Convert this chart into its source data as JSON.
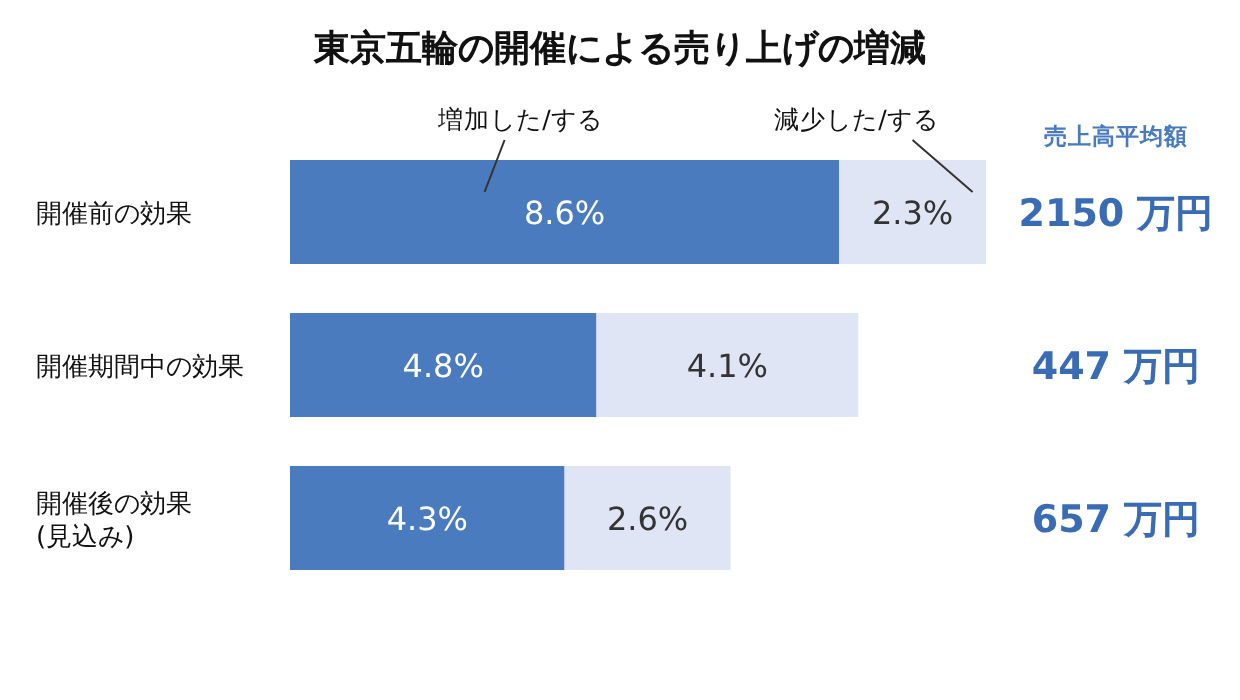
{
  "chart_data": {
    "type": "bar",
    "orientation": "horizontal",
    "stacked": true,
    "title": "東京五輪の開催による売り上げの増減",
    "categories": [
      "開催前の効果",
      "開催期間中の効果",
      "開催後の効果\n(見込み)"
    ],
    "series": [
      {
        "name": "増加した/する",
        "color": "#4a7bbf",
        "values": [
          8.6,
          4.8,
          4.3
        ],
        "value_labels": [
          "8.6%",
          "4.8%",
          "4.3%"
        ]
      },
      {
        "name": "減少した/する",
        "color": "#dfe5f4",
        "values": [
          2.3,
          4.1,
          2.6
        ],
        "value_labels": [
          "2.3%",
          "4.1%",
          "2.6%"
        ]
      }
    ],
    "annotations": [
      "売上高平均額",
      "2150 万円",
      "447 万円",
      "657 万円"
    ]
  }
}
